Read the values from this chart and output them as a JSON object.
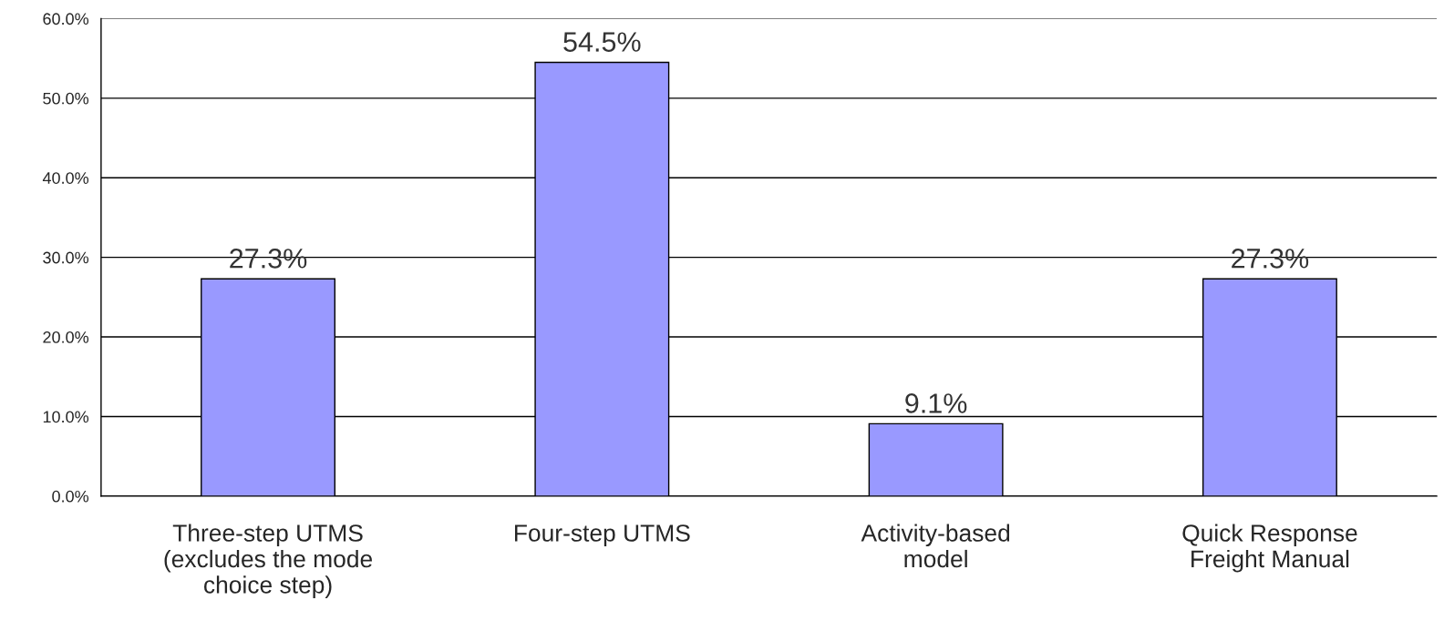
{
  "chart_data": {
    "type": "bar",
    "categories": [
      "Three-step UTMS\n(excludes the mode\nchoice step)",
      "Four-step UTMS",
      "Activity-based\nmodel",
      "Quick Response\nFreight Manual"
    ],
    "values": [
      27.3,
      54.5,
      9.1,
      27.3
    ],
    "value_labels": [
      "27.3%",
      "54.5%",
      "9.1%",
      "27.3%"
    ],
    "color": "#9999ff",
    "ylim": [
      0,
      60
    ],
    "yticks": [
      {
        "value": 0,
        "label": "0.0%"
      },
      {
        "value": 10,
        "label": "10.0%"
      },
      {
        "value": 20,
        "label": "20.0%"
      },
      {
        "value": 30,
        "label": "30.0%"
      },
      {
        "value": 40,
        "label": "40.0%"
      },
      {
        "value": 50,
        "label": "50.0%"
      },
      {
        "value": 60,
        "label": "60.0%"
      }
    ],
    "grid": "y"
  }
}
